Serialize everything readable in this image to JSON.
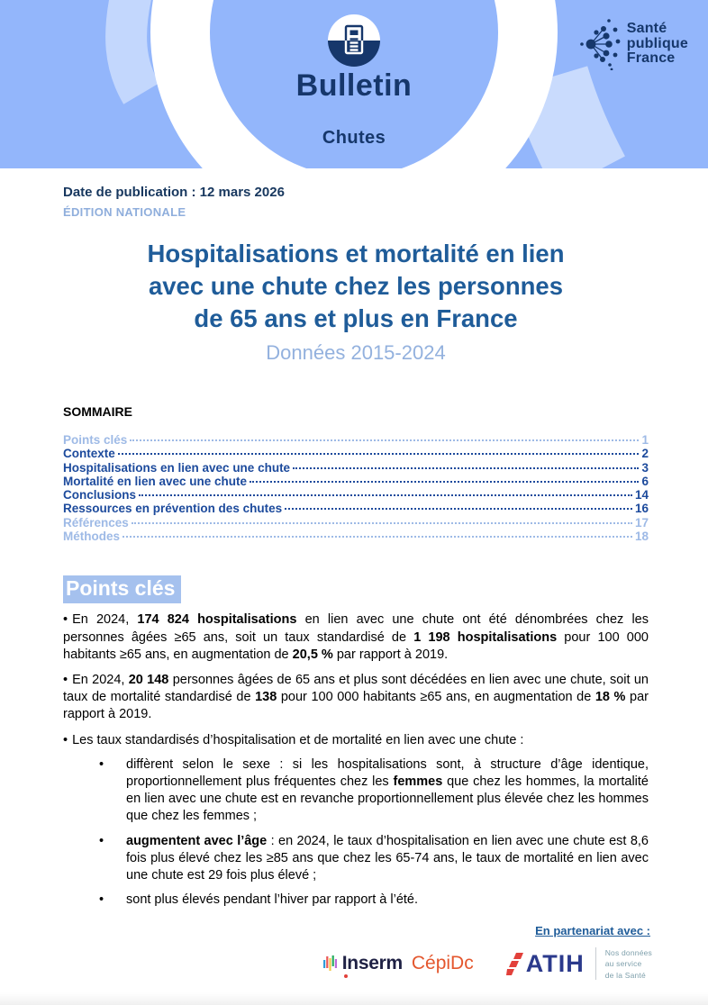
{
  "colors": {
    "banner_bg": "#93B6FB",
    "navy": "#16376B",
    "date_navy": "#17375E",
    "muted_blue": "#8FAEDC",
    "subtitle_blue": "#93B1DE",
    "title_blue": "#1F5C99",
    "toc_blue": "#1C4A9C",
    "toc_muted": "#9EBAE6",
    "highlight": "#A5C1EE",
    "inserm_dark": "#1F2144",
    "cepidc_orange": "#E4572E",
    "atih_navy": "#2B3A8C",
    "atih_red": "#E2403A",
    "tagline_teal": "#7FA0AC"
  },
  "markers": {
    "bullet": "•"
  },
  "banner": {
    "bulletin_label": "Bulletin",
    "topic_label": "Chutes",
    "spf_logo": {
      "line1": "Santé",
      "line2": "publique",
      "line3": "France"
    }
  },
  "meta": {
    "publication_date": "Date de publication : 12 mars 2026",
    "edition": "ÉDITION NATIONALE"
  },
  "title": {
    "line1": "Hospitalisations et mortalité en lien",
    "line2": "avec une chute chez les personnes",
    "line3": "de 65 ans et plus en France",
    "subtitle": "Données 2015-2024"
  },
  "toc": {
    "heading": "SOMMAIRE",
    "items": [
      {
        "label": "Points clés",
        "page": "1",
        "muted": true
      },
      {
        "label": "Contexte",
        "page": "2",
        "muted": false
      },
      {
        "label": "Hospitalisations en lien avec une chute",
        "page": "3",
        "muted": false
      },
      {
        "label": "Mortalité en lien avec une chute",
        "page": "6",
        "muted": false
      },
      {
        "label": "Conclusions",
        "page": "14",
        "muted": false
      },
      {
        "label": "Ressources en prévention des chutes",
        "page": "16",
        "muted": false
      },
      {
        "label": "Références",
        "page": "17",
        "muted": true
      },
      {
        "label": "Méthodes",
        "page": "18",
        "muted": true
      }
    ]
  },
  "key_points": {
    "heading": "Points clés",
    "bullets": [
      {
        "level": 1,
        "segments": [
          {
            "t": "En 2024, ",
            "b": false
          },
          {
            "t": "174 824 hospitalisations",
            "b": true
          },
          {
            "t": " en lien avec une chute ont été dénombrées chez les personnes âgées ≥65 ans, soit un taux standardisé de ",
            "b": false
          },
          {
            "t": "1 198 hospitalisations",
            "b": true
          },
          {
            "t": " pour 100 000 habitants ≥65 ans, en augmentation de ",
            "b": false
          },
          {
            "t": "20,5 %",
            "b": true
          },
          {
            "t": " par rapport à 2019.",
            "b": false
          }
        ]
      },
      {
        "level": 1,
        "segments": [
          {
            "t": "En 2024, ",
            "b": false
          },
          {
            "t": "20 148",
            "b": true
          },
          {
            "t": " personnes âgées de 65 ans et plus sont décédées en lien avec une chute, soit un taux de mortalité standardisé de ",
            "b": false
          },
          {
            "t": "138",
            "b": true
          },
          {
            "t": " pour 100 000 habitants ≥65 ans, en augmentation de ",
            "b": false
          },
          {
            "t": "18 %",
            "b": true
          },
          {
            "t": " par rapport à 2019.",
            "b": false
          }
        ]
      },
      {
        "level": 1,
        "segments": [
          {
            "t": "Les taux standardisés d’hospitalisation et de mortalité en lien avec une chute :",
            "b": false
          }
        ]
      },
      {
        "level": 2,
        "segments": [
          {
            "t": "diffèrent selon le sexe : si les hospitalisations sont, à structure d’âge identique, proportionnellement plus fréquentes chez les ",
            "b": false
          },
          {
            "t": "femmes",
            "b": true
          },
          {
            "t": " que chez les hommes, la mortalité en lien avec une chute est en revanche proportionnellement plus élevée chez les hommes que chez les femmes ;",
            "b": false
          }
        ]
      },
      {
        "level": 2,
        "segments": [
          {
            "t": "augmentent avec l’âge",
            "b": true
          },
          {
            "t": " : en 2024, le taux d’hospitalisation en lien avec une chute est 8,6 fois plus élevé chez les ≥85 ans que chez les 65-74 ans, le taux de mortalité en lien avec une chute est 29 fois plus élevé ;",
            "b": false
          }
        ]
      },
      {
        "level": 2,
        "segments": [
          {
            "t": "sont plus élevés pendant l’hiver par rapport à l’été.",
            "b": false
          }
        ]
      }
    ]
  },
  "footer": {
    "partnership_label": "En partenariat avec :",
    "inserm_label": "Inserm",
    "cepidc_label": "CépiDc",
    "atih_label": "ATIH",
    "atih_tagline": {
      "line1": "Nos données",
      "line2": "au service",
      "line3": "de la Santé"
    }
  }
}
